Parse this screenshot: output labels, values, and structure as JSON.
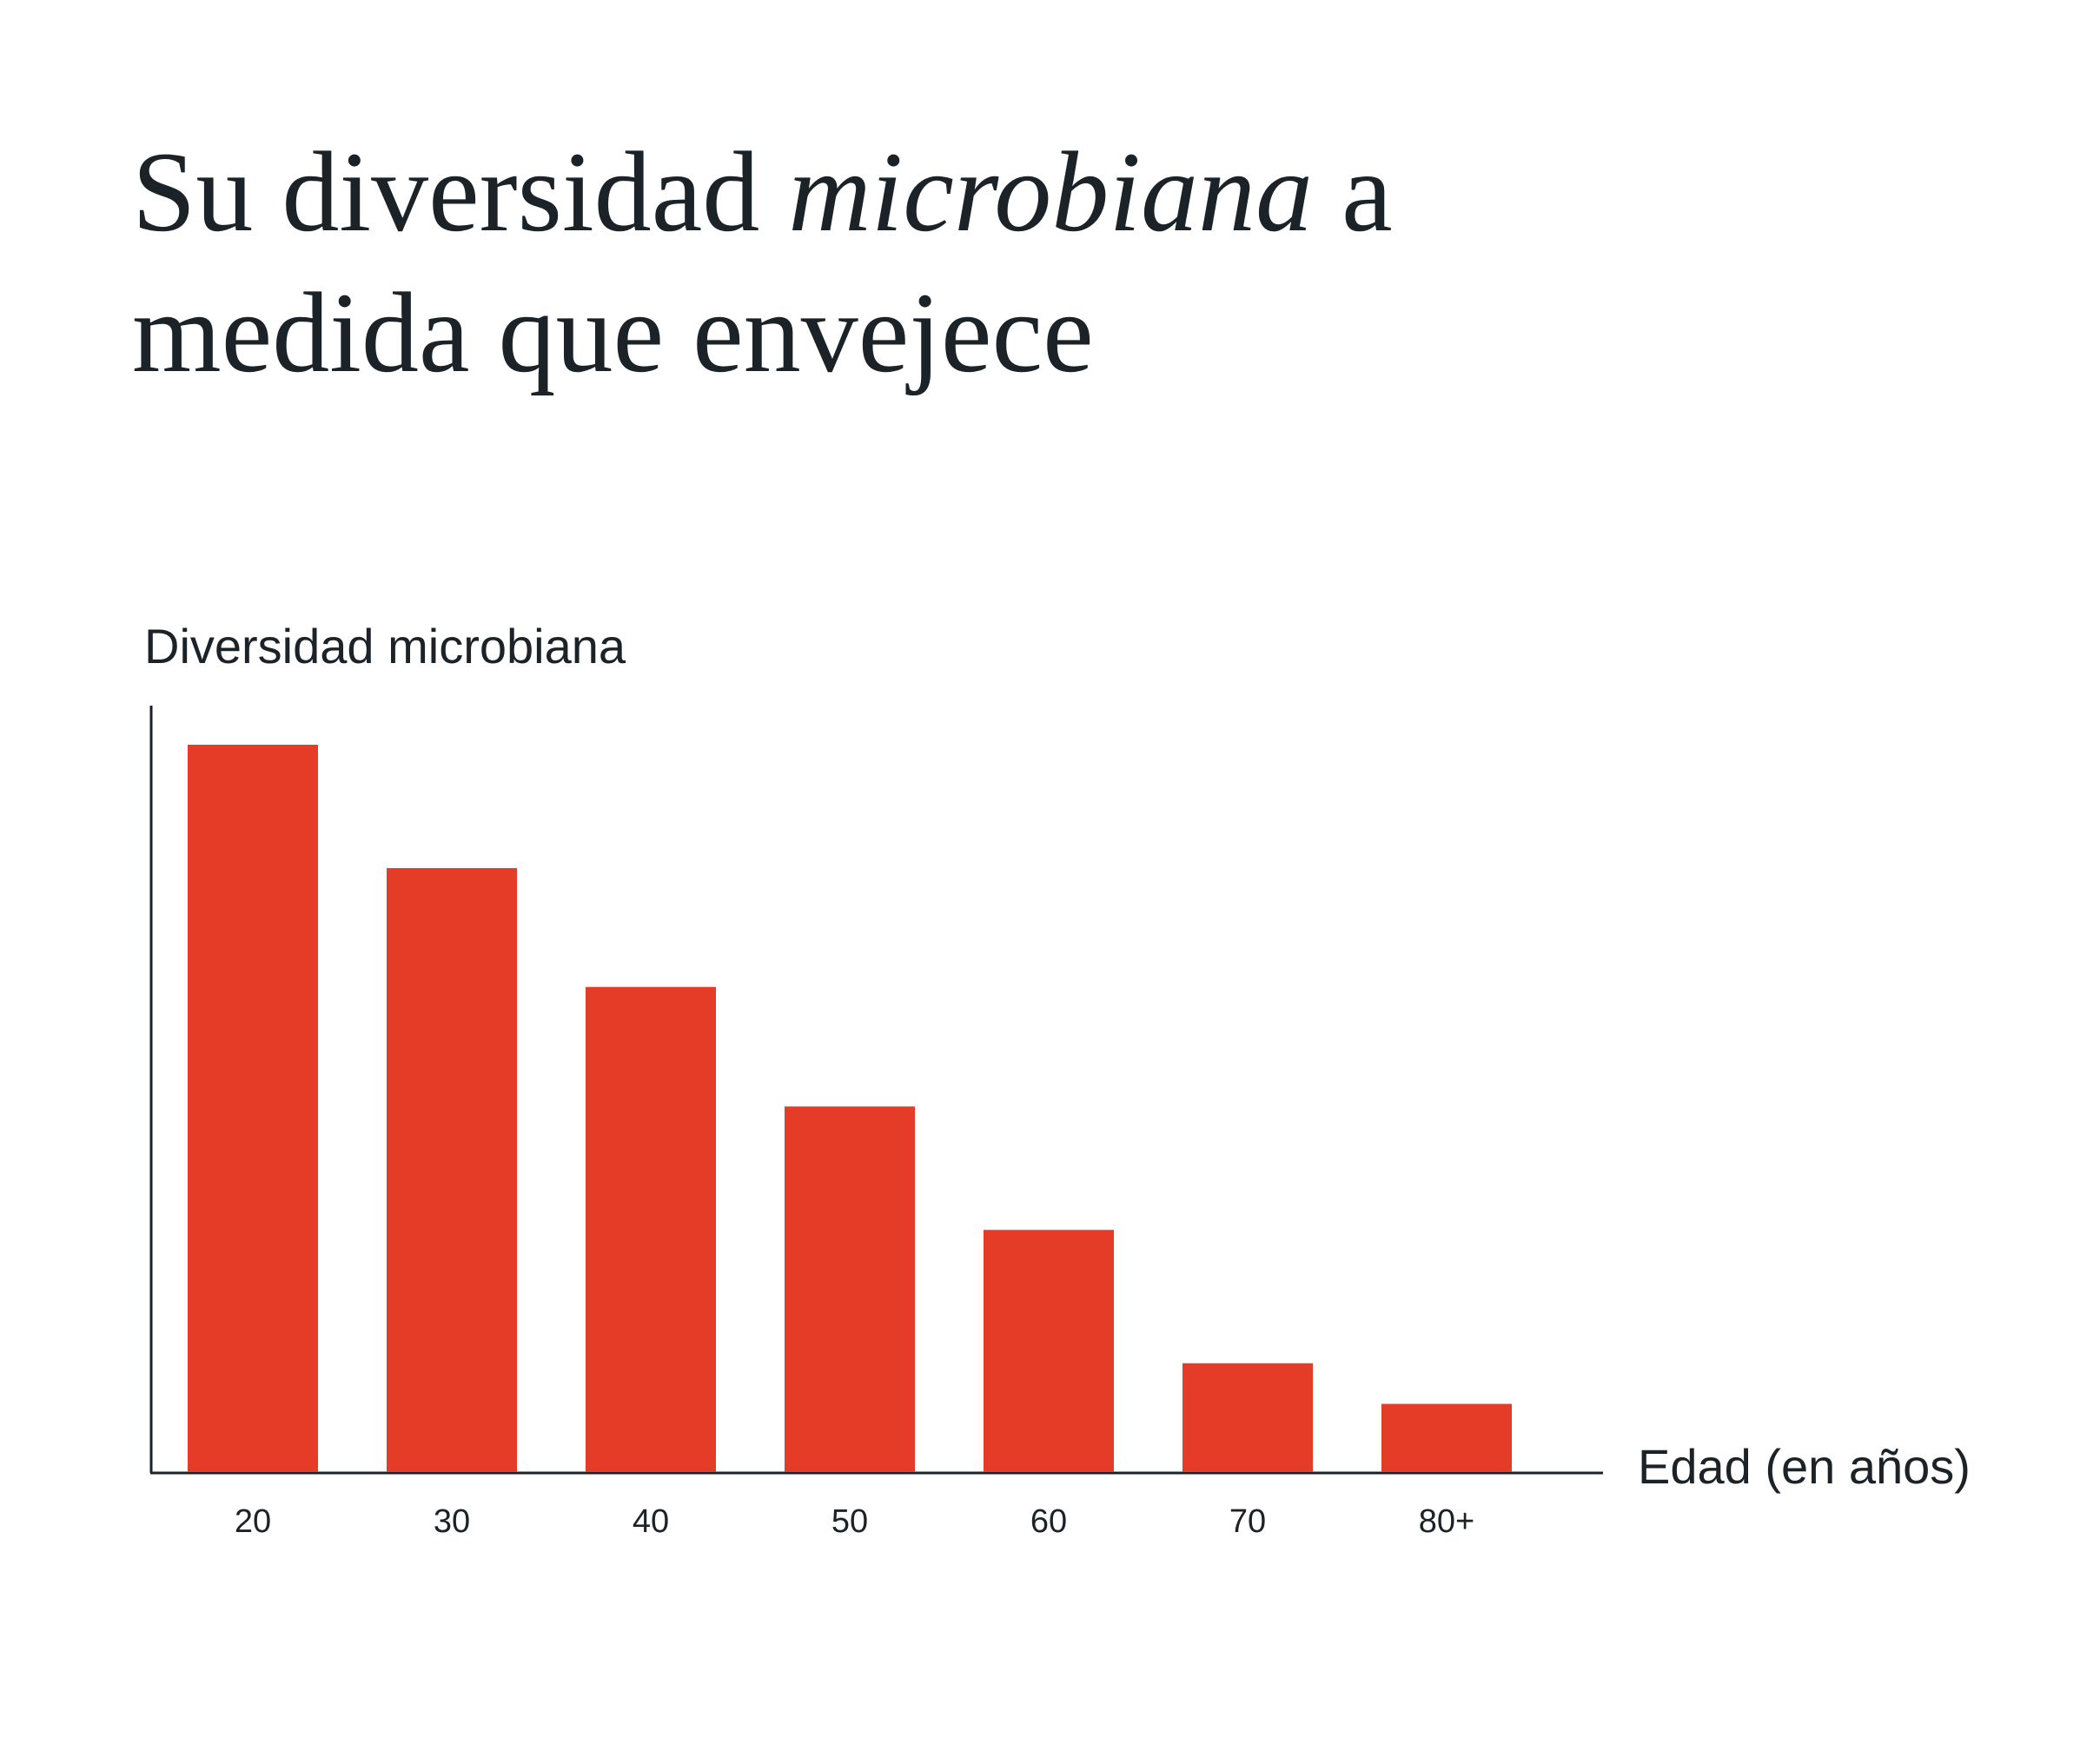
{
  "chart_data": {
    "type": "bar",
    "title": [
      "Su diversidad ",
      "microbiana",
      " a medida que envejece"
    ],
    "title_italic": [
      false,
      true,
      false
    ],
    "y_label": "Diversidad microbiana",
    "x_label": "Edad (en años)",
    "categories": [
      "20",
      "30",
      "40",
      "50",
      "60",
      "70",
      "80+"
    ],
    "values": [
      94.9,
      78.8,
      63.3,
      47.7,
      31.6,
      14.2,
      8.9
    ],
    "color": "#e53c27",
    "ylim": [
      0,
      100
    ],
    "grid": false
  }
}
